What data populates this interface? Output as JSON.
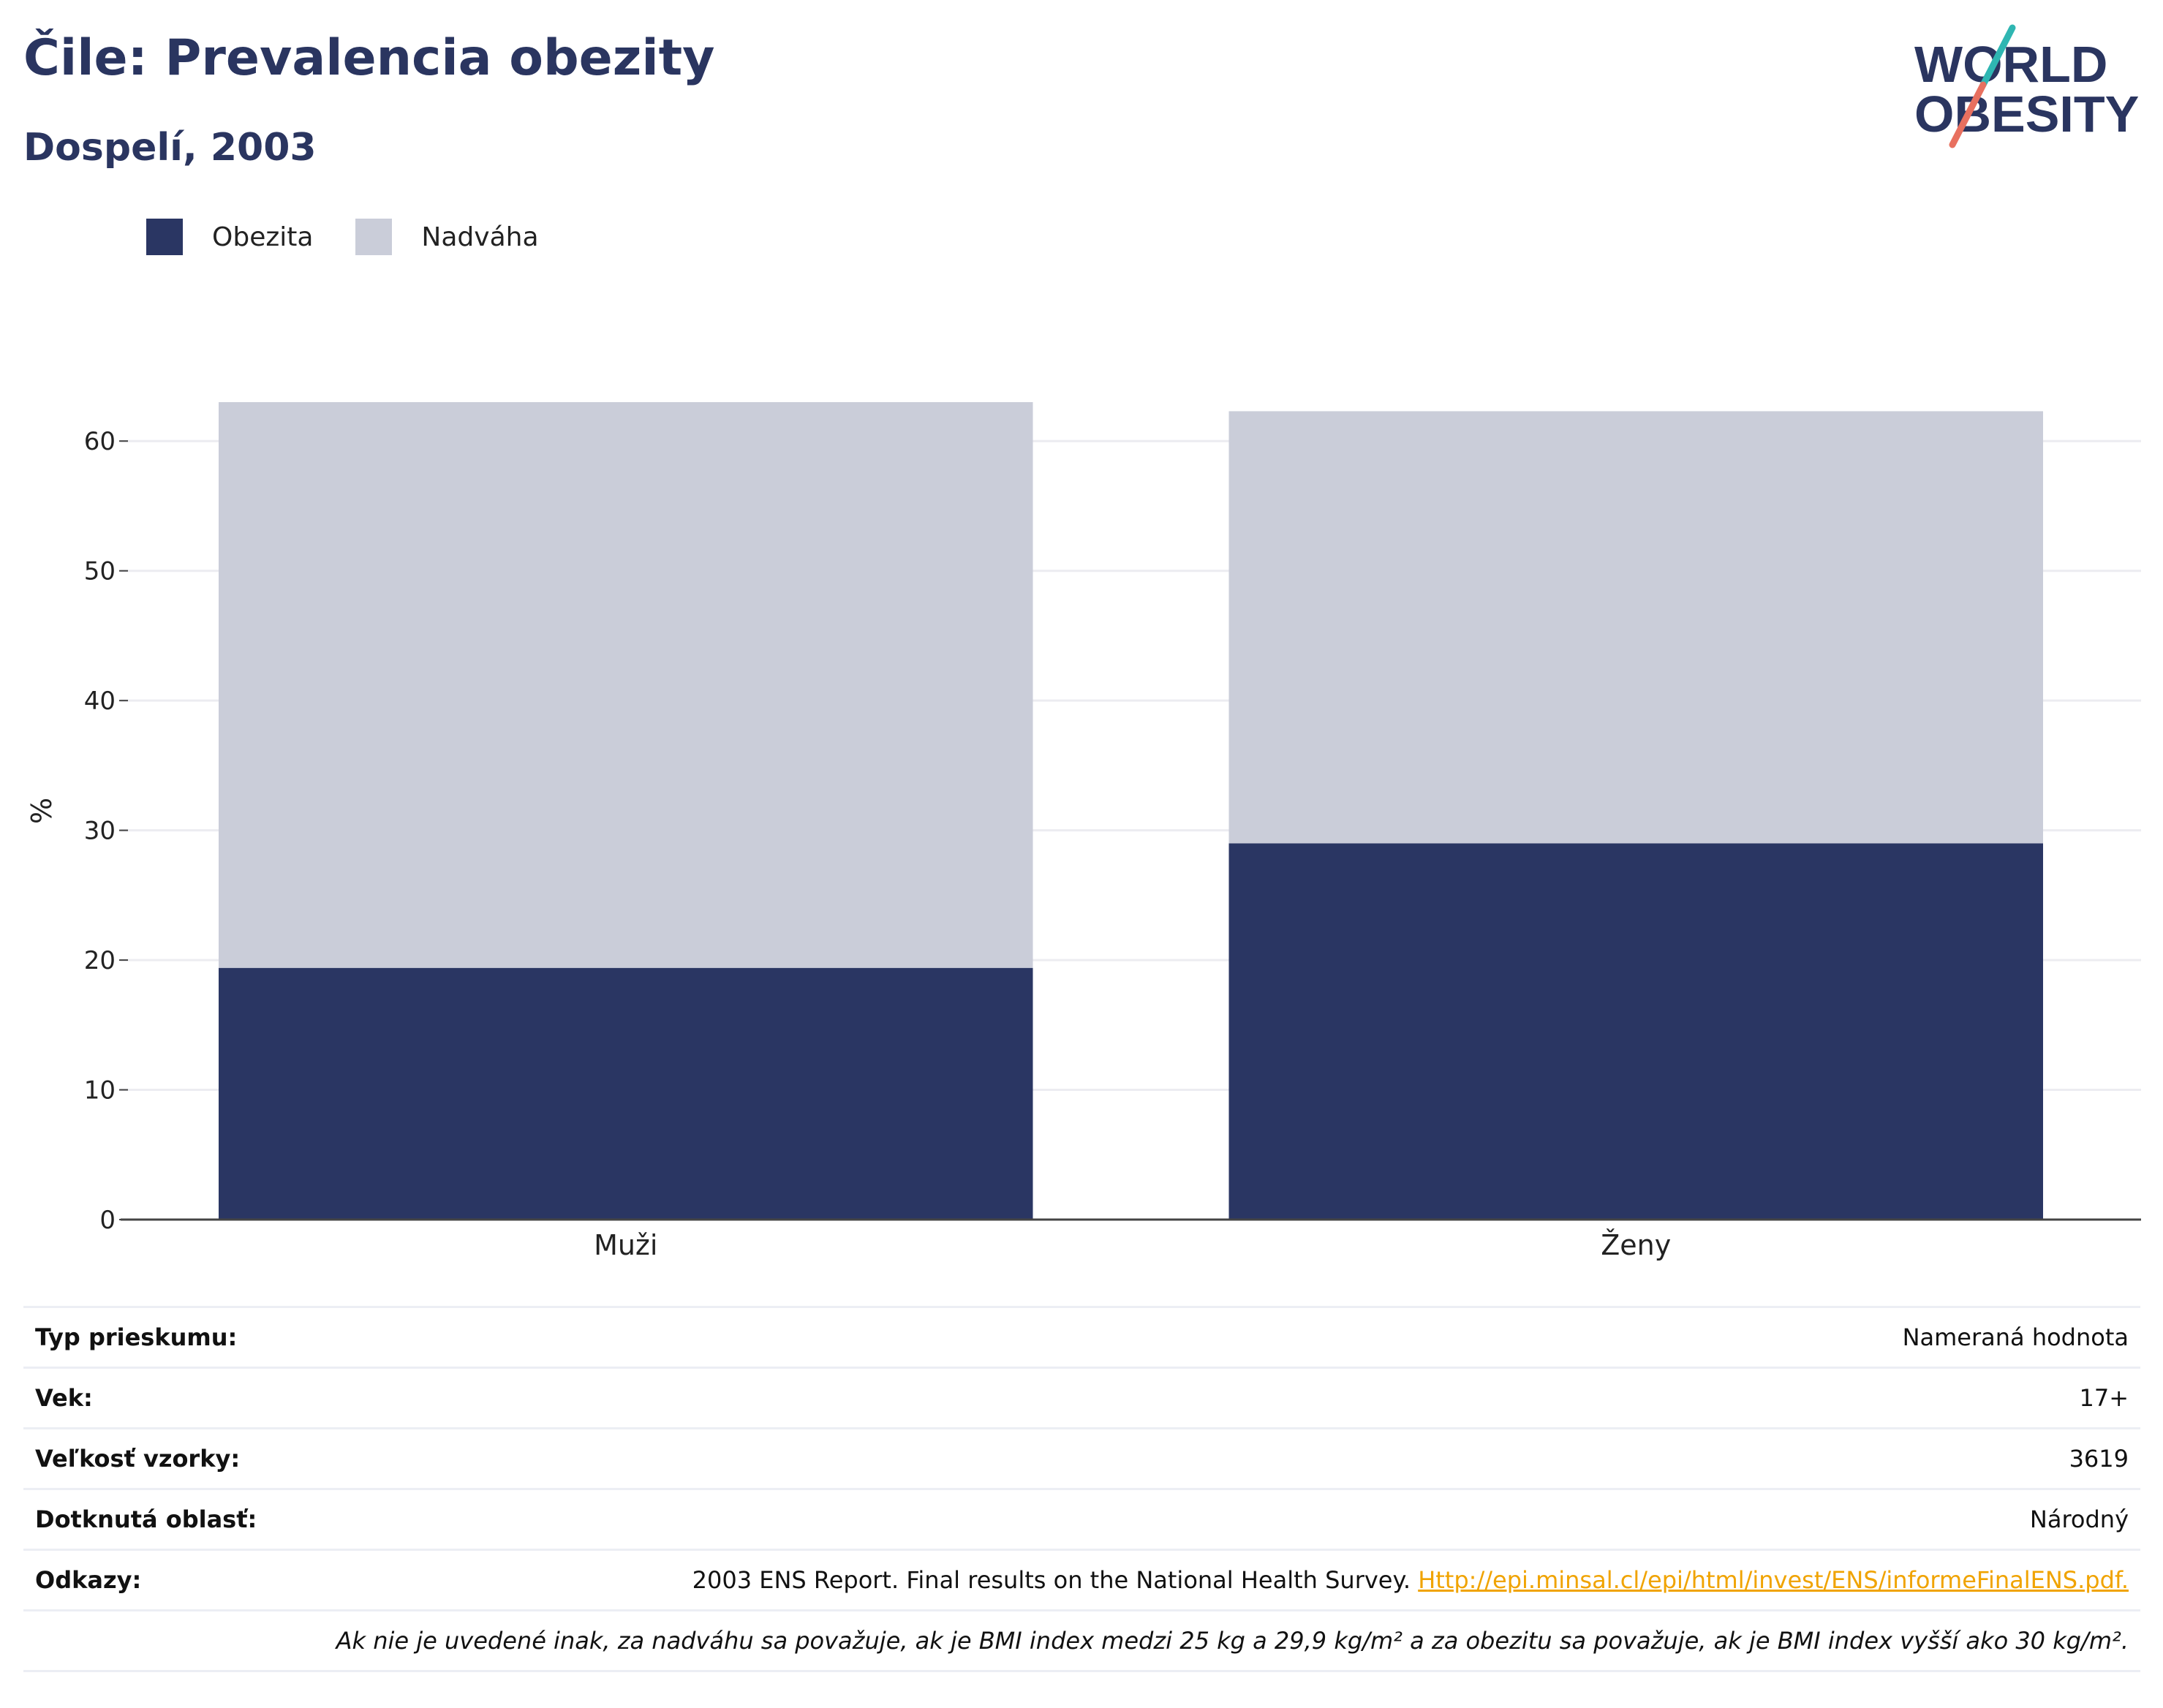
{
  "header": {
    "title": "Čile: Prevalencia obezity",
    "subtitle": "Dospelí, 2003"
  },
  "logo": {
    "line1": "WORLD",
    "line2": "OBESITY"
  },
  "colors": {
    "obesity": "#2a3663",
    "overweight": "#cacdd9",
    "title": "#2a3560",
    "link": "#f0a300"
  },
  "chart_data": {
    "type": "bar",
    "stacked": true,
    "categories": [
      "Muži",
      "Ženy"
    ],
    "series": [
      {
        "name": "Obezita",
        "values": [
          19.4,
          29.0
        ],
        "color": "#2a3663"
      },
      {
        "name": "Nadváha",
        "values": [
          43.6,
          33.3
        ],
        "color": "#cacdd9"
      }
    ],
    "ylabel": "%",
    "ylim": [
      0,
      63
    ],
    "yticks": [
      0,
      10,
      20,
      30,
      40,
      50,
      60
    ],
    "grid": true,
    "legend_position": "top-left"
  },
  "info": {
    "survey_type": {
      "label": "Typ prieskumu:",
      "value": "Nameraná hodnota"
    },
    "age": {
      "label": "Vek:",
      "value": "17+"
    },
    "sample": {
      "label": "Veľkosť vzorky:",
      "value": "3619"
    },
    "area": {
      "label": "Dotknutá oblasť:",
      "value": "Národný"
    },
    "refs": {
      "label": "Odkazy:",
      "text": "2003 ENS Report. Final results on the National Health Survey.",
      "link": "Http://epi.minsal.cl/epi/html/invest/ENS/informeFinalENS.pdf."
    },
    "note": "Ak nie je uvedené inak, za nadváhu sa považuje, ak je BMI index medzi 25 kg a 29,9 kg/m² a za obezitu sa považuje, ak je BMI index vyšší ako 30 kg/m²."
  }
}
